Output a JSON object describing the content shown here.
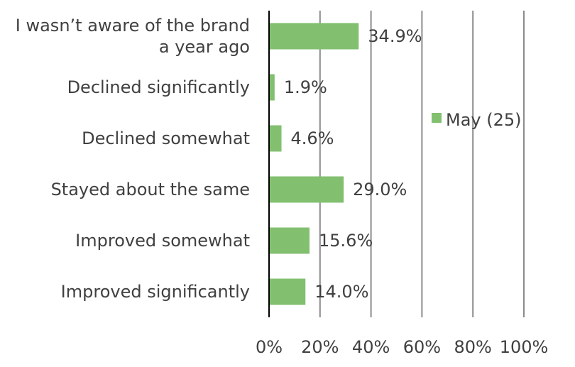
{
  "chart_data": {
    "type": "bar",
    "orientation": "horizontal",
    "categories": [
      [
        "I wasn’t aware of the brand",
        "a year ago"
      ],
      [
        "Declined significantly"
      ],
      [
        "Declined somewhat"
      ],
      [
        "Stayed about the same"
      ],
      [
        "Improved somewhat"
      ],
      [
        "Improved significantly"
      ]
    ],
    "series": [
      {
        "name": "May (25)",
        "color": "#82bf6f",
        "values": [
          34.9,
          1.9,
          4.6,
          29.0,
          15.6,
          14.0
        ],
        "labels": [
          "34.9%",
          "1.9%",
          "4.6%",
          "29.0%",
          "15.6%",
          "14.0%"
        ]
      }
    ],
    "xlim": [
      0,
      100
    ],
    "x_ticks": [
      "0%",
      "20%",
      "40%",
      "60%",
      "80%",
      "100%"
    ],
    "grid": "vertical",
    "legend_position": "right",
    "axis_color": "#000000",
    "grid_color": "#8c8c8c",
    "text_color": "#404040"
  }
}
